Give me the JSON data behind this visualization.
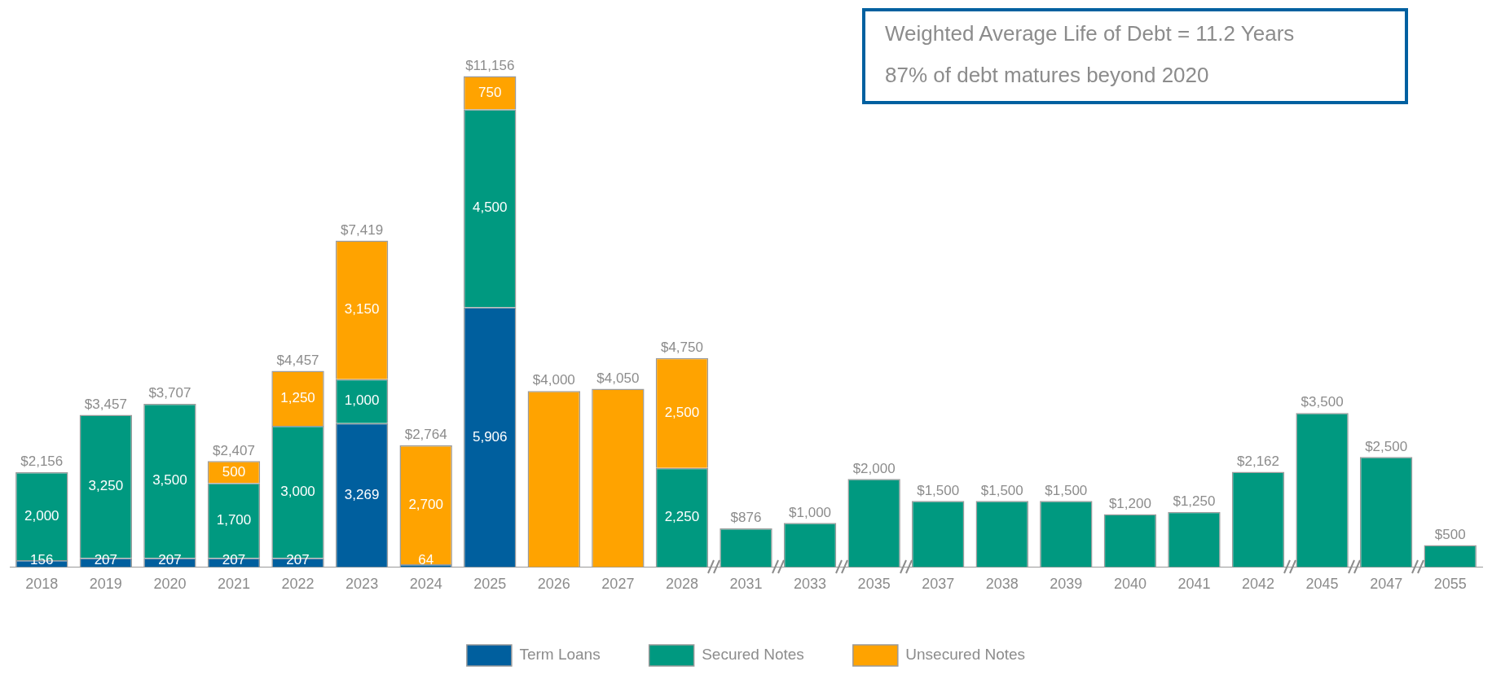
{
  "chart_data": {
    "type": "bar",
    "stacked": true,
    "legend": "bottom",
    "categories": [
      "2018",
      "2019",
      "2020",
      "2021",
      "2022",
      "2023",
      "2024",
      "2025",
      "2026",
      "2027",
      "2028",
      "2031",
      "2033",
      "2035",
      "2037",
      "2038",
      "2039",
      "2040",
      "2041",
      "2042",
      "2045",
      "2047",
      "2055"
    ],
    "series": [
      {
        "name": "Term Loans",
        "color": "#005f9e",
        "values": [
          156,
          207,
          207,
          207,
          207,
          3269,
          64,
          5906,
          null,
          null,
          null,
          null,
          null,
          null,
          null,
          null,
          null,
          null,
          null,
          null,
          null,
          null,
          null
        ],
        "value_labels": [
          "156",
          "207",
          "207",
          "207",
          "207",
          "3,269",
          "64",
          "5,906",
          null,
          null,
          null,
          null,
          null,
          null,
          null,
          null,
          null,
          null,
          null,
          null,
          null,
          null,
          null
        ]
      },
      {
        "name": "Secured Notes",
        "color": "#009980",
        "values": [
          2000,
          3250,
          3500,
          1700,
          3000,
          1000,
          null,
          4500,
          null,
          null,
          2250,
          876,
          1000,
          2000,
          1500,
          1500,
          1500,
          1200,
          1250,
          2162,
          3500,
          2500,
          500
        ],
        "value_labels": [
          "2,000",
          "3,250",
          "3,500",
          "1,700",
          "3,000",
          "1,000",
          null,
          "4,500",
          null,
          null,
          "2,250",
          null,
          null,
          null,
          null,
          null,
          null,
          null,
          null,
          null,
          null,
          null,
          null
        ]
      },
      {
        "name": "Unsecured Notes",
        "color": "#ffa300",
        "values": [
          null,
          null,
          null,
          500,
          1250,
          3150,
          2700,
          750,
          4000,
          4050,
          2500,
          null,
          null,
          null,
          null,
          null,
          null,
          null,
          null,
          null,
          null,
          null,
          null
        ],
        "value_labels": [
          null,
          null,
          null,
          "500",
          "1,250",
          "3,150",
          "2,700",
          "750",
          null,
          null,
          "2,500",
          null,
          null,
          null,
          null,
          null,
          null,
          null,
          null,
          null,
          null,
          null,
          null
        ]
      }
    ],
    "totals": [
      "$2,156",
      "$3,457",
      "$3,707",
      "$2,407",
      "$4,457",
      "$7,419",
      "$2,764",
      "$11,156",
      "$4,000",
      "$4,050",
      "$4,750",
      "$876",
      "$1,000",
      "$2,000",
      "$1,500",
      "$1,500",
      "$1,500",
      "$1,200",
      "$1,250",
      "$2,162",
      "$3,500",
      "$2,500",
      "$500"
    ],
    "annotations": [
      "Weighted Average Life of Debt = 11.2 Years",
      "87% of debt matures beyond 2020"
    ]
  }
}
